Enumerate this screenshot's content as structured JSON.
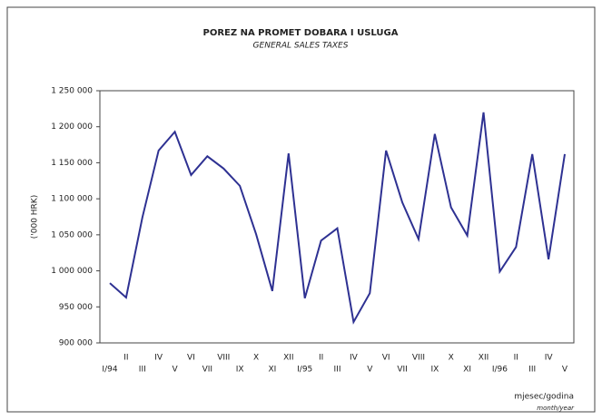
{
  "chart_data": {
    "type": "line",
    "title": "POREZ NA PROMET DOBARA I USLUGA",
    "subtitle": "GENERAL SALES TAXES",
    "y_label": "('000 HRK)",
    "x_label": "mjesec/godina",
    "x_label_sub": "month/year",
    "categories": [
      "I/94",
      "II",
      "III",
      "IV",
      "V",
      "VI",
      "VII",
      "VIII",
      "IX",
      "X",
      "XI",
      "XII",
      "I/95",
      "II",
      "III",
      "IV",
      "V",
      "VI",
      "VII",
      "VIII",
      "IX",
      "X",
      "XI",
      "XII",
      "I/96",
      "II",
      "III",
      "IV",
      "V"
    ],
    "series": [
      {
        "name": "Porez na promet",
        "color": "#2e3192",
        "values": [
          983000,
          963000,
          1074000,
          1167000,
          1193000,
          1133000,
          1159000,
          1142000,
          1118000,
          1051000,
          972000,
          1163000,
          962000,
          1042000,
          1059000,
          929000,
          969000,
          1167000,
          1095000,
          1044000,
          1190000,
          1088000,
          1049000,
          1220000,
          999000,
          1033000,
          1162000,
          1016000,
          1162000
        ]
      }
    ],
    "ylim": [
      900000,
      1250000
    ],
    "yticks": [
      {
        "value": 900000,
        "label": "900 000"
      },
      {
        "value": 950000,
        "label": "950 000"
      },
      {
        "value": 1000000,
        "label": "1 000 000"
      },
      {
        "value": 1050000,
        "label": "1 050 000"
      },
      {
        "value": 1100000,
        "label": "1 100 000"
      },
      {
        "value": 1150000,
        "label": "1 150 000"
      },
      {
        "value": 1200000,
        "label": "1 200 000"
      },
      {
        "value": 1250000,
        "label": "1 250 000"
      }
    ]
  }
}
